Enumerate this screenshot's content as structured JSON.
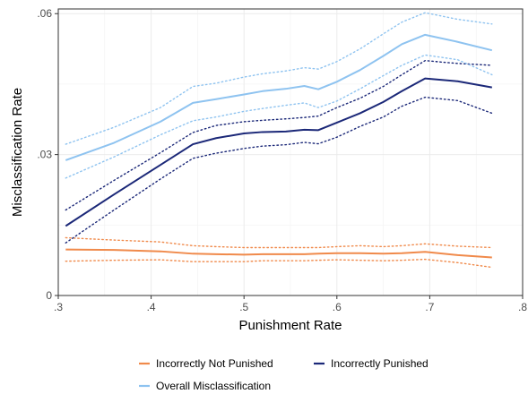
{
  "chart_data": {
    "type": "line",
    "xlabel": "Punishment Rate",
    "ylabel": "Misclassification Rate",
    "xlim": [
      0.3,
      0.8
    ],
    "ylim": [
      0,
      0.061
    ],
    "x_ticks": [
      {
        "value": 0.3,
        "label": ".3"
      },
      {
        "value": 0.4,
        "label": ".4"
      },
      {
        "value": 0.5,
        "label": ".5"
      },
      {
        "value": 0.6,
        "label": ".6"
      },
      {
        "value": 0.7,
        "label": ".7"
      },
      {
        "value": 0.8,
        "label": ".8"
      }
    ],
    "y_ticks": [
      {
        "value": 0,
        "label": "0"
      },
      {
        "value": 0.03,
        "label": ".03"
      },
      {
        "value": 0.06,
        "label": ".06"
      }
    ],
    "grid": true,
    "legend_position": "bottom",
    "series": [
      {
        "name": "Incorrectly Not Punished",
        "color": "#f08a4b",
        "x": [
          0.308,
          0.36,
          0.41,
          0.445,
          0.47,
          0.5,
          0.52,
          0.545,
          0.565,
          0.58,
          0.6,
          0.625,
          0.65,
          0.67,
          0.695,
          0.73,
          0.767
        ],
        "y": [
          0.0098,
          0.0097,
          0.0094,
          0.0089,
          0.0088,
          0.0087,
          0.0088,
          0.0088,
          0.0088,
          0.0089,
          0.009,
          0.009,
          0.0089,
          0.009,
          0.0093,
          0.0086,
          0.0081
        ],
        "upper": [
          0.0123,
          0.0118,
          0.0114,
          0.0106,
          0.0104,
          0.0102,
          0.0102,
          0.0102,
          0.0102,
          0.0102,
          0.0104,
          0.0106,
          0.0104,
          0.0106,
          0.011,
          0.0105,
          0.0102
        ],
        "lower": [
          0.0073,
          0.0075,
          0.0076,
          0.0072,
          0.0072,
          0.0072,
          0.0074,
          0.0074,
          0.0074,
          0.0075,
          0.0076,
          0.0075,
          0.0074,
          0.0075,
          0.0077,
          0.007,
          0.006
        ]
      },
      {
        "name": "Incorrectly Punished",
        "color": "#1b2878",
        "x": [
          0.308,
          0.36,
          0.41,
          0.445,
          0.47,
          0.5,
          0.52,
          0.545,
          0.565,
          0.58,
          0.6,
          0.625,
          0.65,
          0.67,
          0.695,
          0.73,
          0.767
        ],
        "y": [
          0.0148,
          0.0215,
          0.0278,
          0.0322,
          0.0335,
          0.0345,
          0.0348,
          0.0349,
          0.0353,
          0.0352,
          0.0368,
          0.0388,
          0.0412,
          0.0435,
          0.0462,
          0.0456,
          0.0443
        ],
        "upper": [
          0.0182,
          0.0245,
          0.0304,
          0.0347,
          0.0362,
          0.037,
          0.0373,
          0.0376,
          0.0379,
          0.0382,
          0.04,
          0.042,
          0.0445,
          0.047,
          0.05,
          0.0494,
          0.049
        ],
        "lower": [
          0.0112,
          0.0182,
          0.0248,
          0.0292,
          0.0303,
          0.0313,
          0.0318,
          0.0321,
          0.0326,
          0.0323,
          0.0337,
          0.036,
          0.038,
          0.0403,
          0.0422,
          0.0415,
          0.0388
        ]
      },
      {
        "name": "Overall Misclassification",
        "color": "#8ec3f0",
        "x": [
          0.308,
          0.36,
          0.41,
          0.445,
          0.47,
          0.5,
          0.52,
          0.545,
          0.565,
          0.58,
          0.6,
          0.625,
          0.65,
          0.67,
          0.695,
          0.73,
          0.767
        ],
        "y": [
          0.0288,
          0.0325,
          0.037,
          0.041,
          0.0418,
          0.0428,
          0.0435,
          0.044,
          0.0446,
          0.0439,
          0.0455,
          0.048,
          0.051,
          0.0535,
          0.0555,
          0.054,
          0.0522
        ],
        "upper": [
          0.0322,
          0.0358,
          0.04,
          0.0445,
          0.0452,
          0.0465,
          0.0472,
          0.0478,
          0.0485,
          0.0482,
          0.0498,
          0.0525,
          0.0557,
          0.0582,
          0.0602,
          0.0588,
          0.0578
        ],
        "lower": [
          0.025,
          0.0295,
          0.0342,
          0.0372,
          0.038,
          0.0392,
          0.0398,
          0.0405,
          0.041,
          0.04,
          0.0414,
          0.044,
          0.0468,
          0.049,
          0.0512,
          0.0502,
          0.047
        ]
      }
    ]
  }
}
